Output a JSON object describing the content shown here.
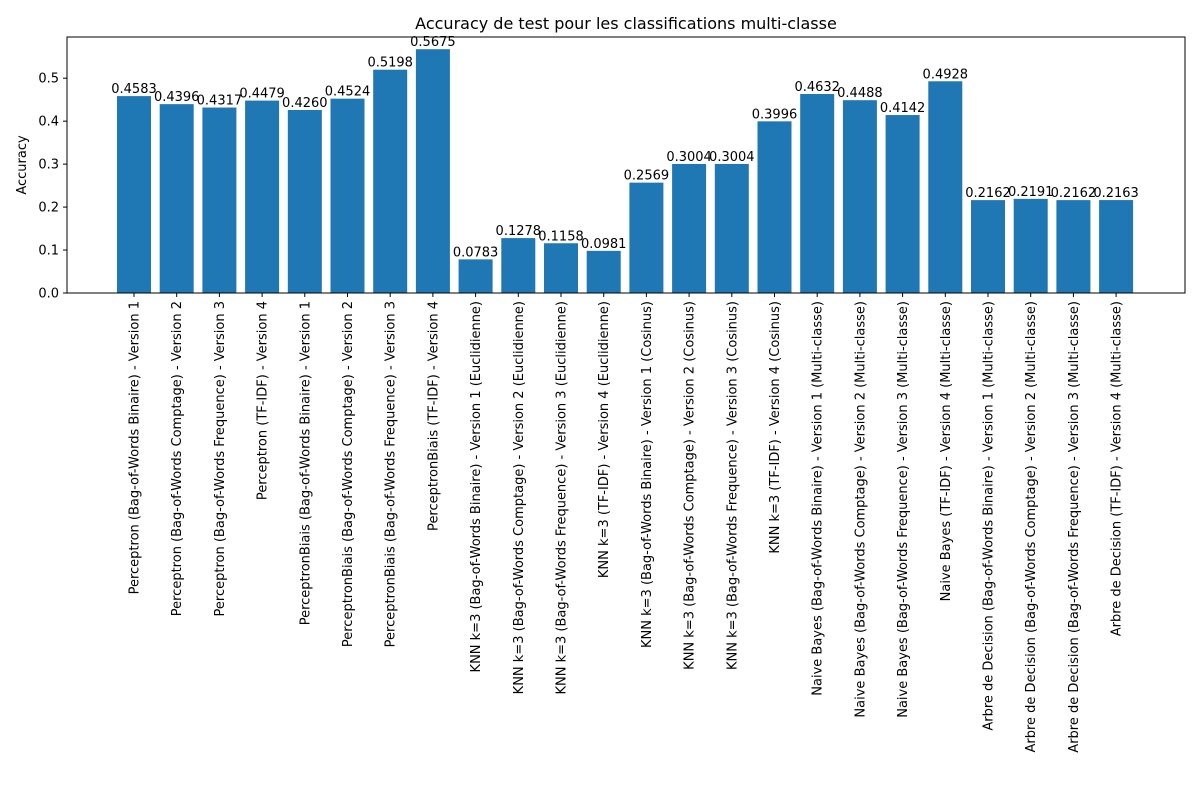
{
  "chart_data": {
    "type": "bar",
    "title": "Accuracy de test pour les classifications multi-classe",
    "xlabel": "",
    "ylabel": "Accuracy",
    "ylim": [
      0,
      0.5959
    ],
    "yticks": [
      0.0,
      0.1,
      0.2,
      0.3,
      0.4,
      0.5
    ],
    "ytick_labels": [
      "0.0",
      "0.1",
      "0.2",
      "0.3",
      "0.4",
      "0.5"
    ],
    "grid": false,
    "bar_color": "#1f77b4",
    "categories": [
      "Perceptron (Bag-of-Words Binaire) - Version 1",
      "Perceptron (Bag-of-Words Comptage) - Version 2",
      "Perceptron (Bag-of-Words Frequence) - Version 3",
      "Perceptron (TF-IDF) - Version 4",
      "PerceptronBiais (Bag-of-Words Binaire) - Version 1",
      "PerceptronBiais (Bag-of-Words Comptage) - Version 2",
      "PerceptronBiais (Bag-of-Words Frequence) - Version 3",
      "PerceptronBiais (TF-IDF) - Version 4",
      "KNN k=3 (Bag-of-Words Binaire) - Version 1 (Euclidienne)",
      "KNN k=3 (Bag-of-Words Comptage) - Version 2 (Euclidienne)",
      "KNN k=3 (Bag-of-Words Frequence) - Version 3 (Euclidienne)",
      "KNN k=3 (TF-IDF) - Version 4 (Euclidienne)",
      "KNN k=3 (Bag-of-Words Binaire) - Version 1 (Cosinus)",
      "KNN k=3 (Bag-of-Words Comptage) - Version 2 (Cosinus)",
      "KNN k=3 (Bag-of-Words Frequence) - Version 3 (Cosinus)",
      "KNN k=3 (TF-IDF) - Version 4 (Cosinus)",
      "Naive Bayes (Bag-of-Words Binaire) - Version 1 (Multi-classe)",
      "Naive Bayes (Bag-of-Words Comptage) - Version 2 (Multi-classe)",
      "Naive Bayes (Bag-of-Words Frequence) - Version 3 (Multi-classe)",
      "Naive Bayes (TF-IDF) - Version 4 (Multi-classe)",
      "Arbre de Decision (Bag-of-Words Binaire) - Version 1 (Multi-classe)",
      "Arbre de Decision (Bag-of-Words Comptage) - Version 2 (Multi-classe)",
      "Arbre de Decision (Bag-of-Words Frequence) - Version 3 (Multi-classe)",
      "Arbre de Decision (TF-IDF) - Version 4 (Multi-classe)"
    ],
    "values": [
      0.4583,
      0.4396,
      0.4317,
      0.4479,
      0.426,
      0.4524,
      0.5198,
      0.5675,
      0.0783,
      0.1278,
      0.1158,
      0.0981,
      0.2569,
      0.3004,
      0.3004,
      0.3996,
      0.4632,
      0.4488,
      0.4142,
      0.4928,
      0.2162,
      0.2191,
      0.2162,
      0.2163
    ],
    "data_labels": [
      "0.4583",
      "0.4396",
      "0.4317",
      "0.4479",
      "0.4260",
      "0.4524",
      "0.5198",
      "0.5675",
      "0.0783",
      "0.1278",
      "0.1158",
      "0.0981",
      "0.2569",
      "0.3004",
      "0.3004",
      "0.3996",
      "0.4632",
      "0.4488",
      "0.4142",
      "0.4928",
      "0.2162",
      "0.2191",
      "0.2162",
      "0.2163"
    ]
  }
}
